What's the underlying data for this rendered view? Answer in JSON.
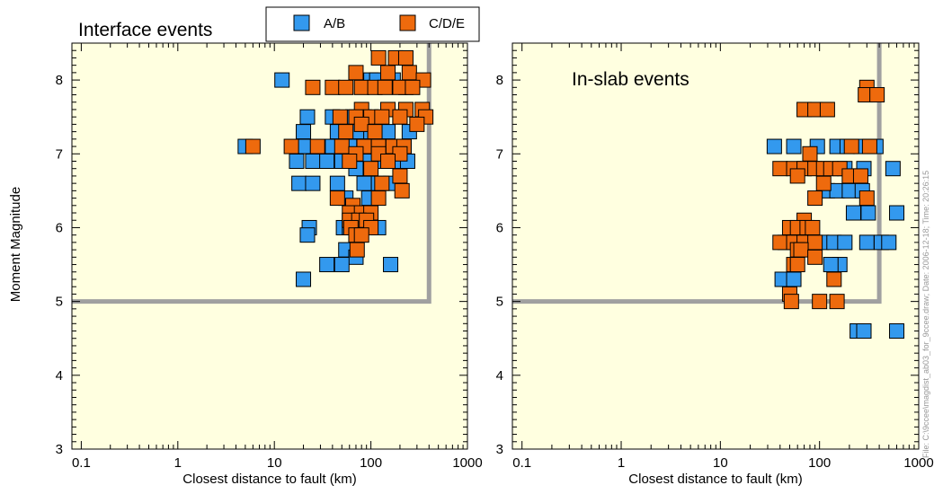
{
  "chart_data": [
    {
      "type": "scatter",
      "title": "Interface events",
      "xlabel": "Closest distance to fault (km)",
      "ylabel": "Moment Magnitude",
      "xscale": "log",
      "xlim": [
        0.08,
        1000
      ],
      "ylim": [
        3,
        8.5
      ],
      "xticks": [
        "0.1",
        "1",
        "10",
        "100",
        "1000"
      ],
      "yticks": [
        "3",
        "4",
        "5",
        "6",
        "7",
        "8"
      ],
      "background": "#ffffe0",
      "grid": false,
      "limit_line": {
        "x": [
          0.08,
          400,
          400
        ],
        "y": [
          5,
          5,
          8.5
        ],
        "color": "#a0a0a0"
      },
      "series": [
        {
          "name": "A/B",
          "color": "#3399ee",
          "points": [
            [
              12,
              8.0
            ],
            [
              100,
              8.0
            ],
            [
              115,
              8.0
            ],
            [
              170,
              8.0
            ],
            [
              230,
              7.9
            ],
            [
              22,
              7.5
            ],
            [
              40,
              7.5
            ],
            [
              65,
              7.5
            ],
            [
              85,
              7.5
            ],
            [
              200,
              7.5
            ],
            [
              20,
              7.3
            ],
            [
              45,
              7.3
            ],
            [
              75,
              7.3
            ],
            [
              100,
              7.3
            ],
            [
              150,
              7.3
            ],
            [
              250,
              7.3
            ],
            [
              5,
              7.1
            ],
            [
              20,
              7.1
            ],
            [
              40,
              7.1
            ],
            [
              60,
              7.1
            ],
            [
              90,
              7.1
            ],
            [
              130,
              7.1
            ],
            [
              220,
              7.1
            ],
            [
              17,
              6.9
            ],
            [
              25,
              6.9
            ],
            [
              35,
              6.9
            ],
            [
              50,
              6.9
            ],
            [
              70,
              6.9
            ],
            [
              95,
              6.9
            ],
            [
              140,
              6.9
            ],
            [
              190,
              6.9
            ],
            [
              240,
              6.9
            ],
            [
              70,
              6.8
            ],
            [
              18,
              6.6
            ],
            [
              25,
              6.6
            ],
            [
              45,
              6.6
            ],
            [
              85,
              6.6
            ],
            [
              120,
              6.6
            ],
            [
              160,
              6.6
            ],
            [
              55,
              6.4
            ],
            [
              95,
              6.4
            ],
            [
              52,
              6.0
            ],
            [
              60,
              6.0
            ],
            [
              23,
              6.0
            ],
            [
              120,
              6.0
            ],
            [
              22,
              5.9
            ],
            [
              55,
              5.7
            ],
            [
              70,
              5.6
            ],
            [
              35,
              5.5
            ],
            [
              50,
              5.5
            ],
            [
              160,
              5.5
            ],
            [
              20,
              5.3
            ]
          ]
        },
        {
          "name": "C/D/E",
          "color": "#ee6a0d",
          "points": [
            [
              120,
              8.3
            ],
            [
              180,
              8.3
            ],
            [
              230,
              8.3
            ],
            [
              70,
              8.1
            ],
            [
              150,
              8.1
            ],
            [
              250,
              8.1
            ],
            [
              350,
              8.0
            ],
            [
              25,
              7.9
            ],
            [
              40,
              7.9
            ],
            [
              55,
              7.9
            ],
            [
              80,
              7.9
            ],
            [
              110,
              7.9
            ],
            [
              140,
              7.9
            ],
            [
              200,
              7.9
            ],
            [
              270,
              7.9
            ],
            [
              80,
              7.6
            ],
            [
              150,
              7.6
            ],
            [
              230,
              7.6
            ],
            [
              340,
              7.6
            ],
            [
              48,
              7.5
            ],
            [
              70,
              7.5
            ],
            [
              100,
              7.5
            ],
            [
              130,
              7.5
            ],
            [
              200,
              7.5
            ],
            [
              370,
              7.5
            ],
            [
              80,
              7.4
            ],
            [
              300,
              7.4
            ],
            [
              55,
              7.3
            ],
            [
              110,
              7.3
            ],
            [
              6,
              7.1
            ],
            [
              15,
              7.1
            ],
            [
              28,
              7.1
            ],
            [
              50,
              7.1
            ],
            [
              85,
              7.1
            ],
            [
              120,
              7.1
            ],
            [
              170,
              7.1
            ],
            [
              220,
              7.1
            ],
            [
              70,
              7.0
            ],
            [
              120,
              7.0
            ],
            [
              200,
              7.0
            ],
            [
              60,
              6.9
            ],
            [
              150,
              6.9
            ],
            [
              100,
              6.8
            ],
            [
              200,
              6.7
            ],
            [
              130,
              6.6
            ],
            [
              210,
              6.5
            ],
            [
              45,
              6.4
            ],
            [
              120,
              6.4
            ],
            [
              65,
              6.3
            ],
            [
              60,
              6.2
            ],
            [
              80,
              6.2
            ],
            [
              100,
              6.2
            ],
            [
              60,
              6.1
            ],
            [
              75,
              6.1
            ],
            [
              90,
              6.1
            ],
            [
              100,
              6.0
            ],
            [
              62,
              6.0
            ],
            [
              70,
              5.9
            ],
            [
              80,
              5.9
            ],
            [
              72,
              5.7
            ]
          ]
        }
      ]
    },
    {
      "type": "scatter",
      "title": "In-slab events",
      "xlabel": "Closest distance to fault (km)",
      "ylabel": "",
      "xscale": "log",
      "xlim": [
        0.08,
        1000
      ],
      "ylim": [
        3,
        8.5
      ],
      "xticks": [
        "0.1",
        "1",
        "10",
        "100",
        "1000"
      ],
      "yticks": [
        "3",
        "4",
        "5",
        "6",
        "7",
        "8"
      ],
      "background": "#ffffe0",
      "grid": false,
      "limit_line": {
        "x": [
          0.08,
          400,
          400
        ],
        "y": [
          5,
          5,
          8.5
        ],
        "color": "#a0a0a0"
      },
      "series": [
        {
          "name": "A/B",
          "color": "#3399ee",
          "points": [
            [
              35,
              7.1
            ],
            [
              55,
              7.1
            ],
            [
              95,
              7.1
            ],
            [
              150,
              7.1
            ],
            [
              190,
              7.1
            ],
            [
              260,
              7.1
            ],
            [
              370,
              7.1
            ],
            [
              180,
              6.8
            ],
            [
              280,
              6.8
            ],
            [
              550,
              6.8
            ],
            [
              120,
              6.5
            ],
            [
              150,
              6.5
            ],
            [
              200,
              6.5
            ],
            [
              270,
              6.5
            ],
            [
              220,
              6.2
            ],
            [
              310,
              6.2
            ],
            [
              600,
              6.2
            ],
            [
              45,
              5.8
            ],
            [
              105,
              5.8
            ],
            [
              140,
              5.8
            ],
            [
              180,
              5.8
            ],
            [
              300,
              5.8
            ],
            [
              420,
              5.8
            ],
            [
              500,
              5.8
            ],
            [
              160,
              5.5
            ],
            [
              130,
              5.5
            ],
            [
              42,
              5.3
            ],
            [
              55,
              5.3
            ],
            [
              240,
              4.6
            ],
            [
              280,
              4.6
            ],
            [
              600,
              4.6
            ]
          ]
        },
        {
          "name": "C/D/E",
          "color": "#ee6a0d",
          "points": [
            [
              300,
              7.9
            ],
            [
              290,
              7.8
            ],
            [
              380,
              7.8
            ],
            [
              70,
              7.6
            ],
            [
              90,
              7.6
            ],
            [
              120,
              7.6
            ],
            [
              80,
              7.0
            ],
            [
              210,
              7.1
            ],
            [
              320,
              7.1
            ],
            [
              40,
              6.8
            ],
            [
              55,
              6.8
            ],
            [
              70,
              6.8
            ],
            [
              90,
              6.8
            ],
            [
              110,
              6.8
            ],
            [
              130,
              6.8
            ],
            [
              160,
              6.8
            ],
            [
              60,
              6.7
            ],
            [
              200,
              6.7
            ],
            [
              260,
              6.7
            ],
            [
              110,
              6.6
            ],
            [
              90,
              6.4
            ],
            [
              300,
              6.4
            ],
            [
              70,
              6.1
            ],
            [
              50,
              6.0
            ],
            [
              60,
              6.0
            ],
            [
              75,
              6.0
            ],
            [
              85,
              6.0
            ],
            [
              40,
              5.8
            ],
            [
              55,
              5.8
            ],
            [
              70,
              5.8
            ],
            [
              90,
              5.8
            ],
            [
              60,
              5.7
            ],
            [
              65,
              5.7
            ],
            [
              90,
              5.6
            ],
            [
              55,
              5.5
            ],
            [
              60,
              5.5
            ],
            [
              140,
              5.3
            ],
            [
              50,
              5.1
            ],
            [
              52,
              5.0
            ],
            [
              100,
              5.0
            ],
            [
              150,
              5.0
            ]
          ]
        }
      ]
    }
  ],
  "legend": {
    "items": [
      {
        "label": "A/B",
        "color": "#3399ee"
      },
      {
        "label": "C/D/E",
        "color": "#ee6a0d"
      }
    ]
  },
  "file_note": "File: C:\\9ccee\\magdist_ab03_for_9ccee.draw; Date: 2006-12-18; Time: 20:26:15"
}
